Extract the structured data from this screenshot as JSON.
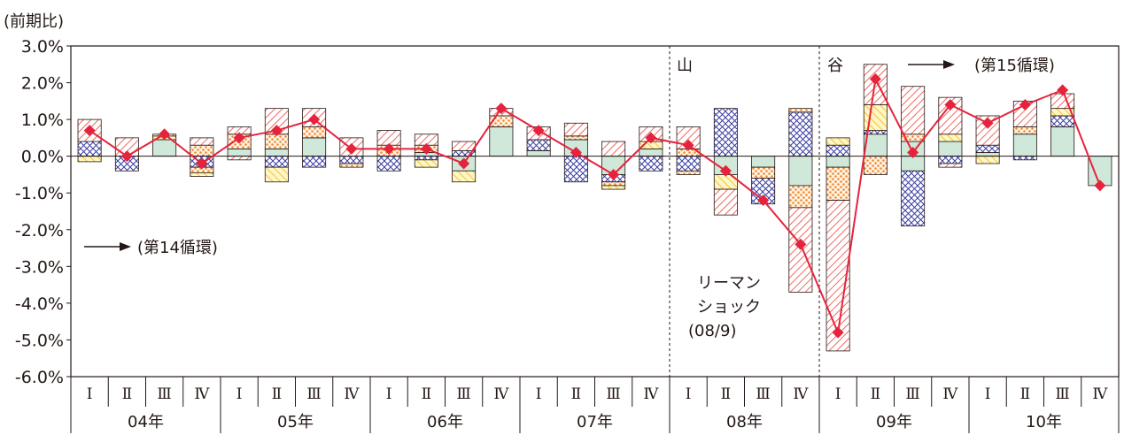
{
  "chart_data": {
    "type": "bar+line",
    "y_unit_label": "(前期比)",
    "y_ticks": [
      "3.0%",
      "2.0%",
      "1.0%",
      "0.0%",
      "-1.0%",
      "-2.0%",
      "-3.0%",
      "-4.0%",
      "-5.0%",
      "-6.0%"
    ],
    "ylim": [
      -6,
      3
    ],
    "quarter_labels": [
      "Ⅰ",
      "Ⅱ",
      "Ⅲ",
      "Ⅳ"
    ],
    "years": [
      "04年",
      "05年",
      "06年",
      "07年",
      "08年",
      "09年",
      "10年"
    ],
    "line_values": [
      0.7,
      0.0,
      0.6,
      -0.2,
      0.5,
      0.7,
      1.0,
      0.2,
      0.2,
      0.2,
      -0.2,
      1.3,
      0.7,
      0.1,
      -0.5,
      0.5,
      0.3,
      -0.4,
      -1.2,
      -2.4,
      -4.8,
      2.1,
      0.1,
      1.4,
      0.9,
      1.4,
      1.8,
      -0.8
    ],
    "stack_series_colors": {
      "solid": "#cfe8da",
      "crosshatch": "#3b3fa3",
      "hatch_yellow": "#f0c020",
      "dots_orange": "#f08a2c",
      "hatch_red": "#e8443a"
    },
    "bars": [
      {
        "pos": [
          [
            "cross",
            0.4
          ],
          [
            "red",
            0.6
          ]
        ],
        "neg": [
          [
            "yel",
            0.15
          ]
        ]
      },
      {
        "pos": [
          [
            "red",
            0.5
          ]
        ],
        "neg": [
          [
            "cross",
            0.4
          ]
        ]
      },
      {
        "pos": [
          [
            "solid",
            0.45
          ],
          [
            "yel",
            0.1
          ],
          [
            "red",
            0.05
          ]
        ],
        "neg": []
      },
      {
        "pos": [
          [
            "dots",
            0.3
          ],
          [
            "red",
            0.2
          ]
        ],
        "neg": [
          [
            "cross",
            0.3
          ],
          [
            "dots",
            0.15
          ],
          [
            "yel",
            0.1
          ]
        ]
      },
      {
        "pos": [
          [
            "solid",
            0.2
          ],
          [
            "dots",
            0.4
          ],
          [
            "red",
            0.2
          ]
        ],
        "neg": [
          [
            "red",
            0.1
          ]
        ]
      },
      {
        "pos": [
          [
            "solid",
            0.2
          ],
          [
            "dots",
            0.4
          ],
          [
            "red",
            0.7
          ]
        ],
        "neg": [
          [
            "cross",
            0.3
          ],
          [
            "yel",
            0.4
          ]
        ]
      },
      {
        "pos": [
          [
            "solid",
            0.5
          ],
          [
            "dots",
            0.3
          ],
          [
            "red",
            0.5
          ]
        ],
        "neg": [
          [
            "cross",
            0.3
          ]
        ]
      },
      {
        "pos": [
          [
            "red",
            0.5
          ]
        ],
        "neg": [
          [
            "cross",
            0.2
          ],
          [
            "dots",
            0.1
          ]
        ]
      },
      {
        "pos": [
          [
            "dots",
            0.3
          ],
          [
            "red",
            0.4
          ]
        ],
        "neg": [
          [
            "cross",
            0.4
          ]
        ]
      },
      {
        "pos": [
          [
            "solid",
            0.1
          ],
          [
            "dots",
            0.2
          ],
          [
            "red",
            0.3
          ]
        ],
        "neg": [
          [
            "cross",
            0.1
          ],
          [
            "yel",
            0.2
          ]
        ]
      },
      {
        "pos": [
          [
            "cross",
            0.15
          ],
          [
            "red",
            0.25
          ]
        ],
        "neg": [
          [
            "solid",
            0.4
          ],
          [
            "yel",
            0.3
          ]
        ]
      },
      {
        "pos": [
          [
            "solid",
            0.8
          ],
          [
            "dots",
            0.3
          ],
          [
            "red",
            0.2
          ]
        ],
        "neg": []
      },
      {
        "pos": [
          [
            "solid",
            0.15
          ],
          [
            "cross",
            0.3
          ],
          [
            "red",
            0.35
          ]
        ],
        "neg": []
      },
      {
        "pos": [
          [
            "solid",
            0.45
          ],
          [
            "dots",
            0.1
          ],
          [
            "red",
            0.35
          ]
        ],
        "neg": [
          [
            "cross",
            0.7
          ]
        ]
      },
      {
        "pos": [
          [
            "red",
            0.4
          ]
        ],
        "neg": [
          [
            "solid",
            0.5
          ],
          [
            "cross",
            0.2
          ],
          [
            "dots",
            0.1
          ],
          [
            "yel",
            0.1
          ]
        ]
      },
      {
        "pos": [
          [
            "solid",
            0.2
          ],
          [
            "yel",
            0.2
          ],
          [
            "red",
            0.4
          ]
        ],
        "neg": [
          [
            "cross",
            0.4
          ]
        ]
      },
      {
        "pos": [
          [
            "dots",
            0.2
          ],
          [
            "red",
            0.6
          ]
        ],
        "neg": [
          [
            "cross",
            0.4
          ],
          [
            "dots",
            0.1
          ]
        ]
      },
      {
        "pos": [
          [
            "cross",
            1.3
          ]
        ],
        "neg": [
          [
            "solid",
            0.5
          ],
          [
            "yel",
            0.4
          ],
          [
            "red",
            0.7
          ]
        ]
      },
      {
        "pos": [],
        "neg": [
          [
            "solid",
            0.3
          ],
          [
            "dots",
            0.3
          ],
          [
            "cross",
            0.7
          ]
        ]
      },
      {
        "pos": [
          [
            "cross",
            1.2
          ],
          [
            "dots",
            0.1
          ]
        ],
        "neg": [
          [
            "solid",
            0.8
          ],
          [
            "dots",
            0.6
          ],
          [
            "red",
            2.3
          ]
        ]
      },
      {
        "pos": [
          [
            "cross",
            0.3
          ],
          [
            "yel",
            0.2
          ]
        ],
        "neg": [
          [
            "solid",
            0.3
          ],
          [
            "dots",
            0.9
          ],
          [
            "red",
            4.1
          ]
        ]
      },
      {
        "pos": [
          [
            "solid",
            0.6
          ],
          [
            "cross",
            0.1
          ],
          [
            "yel",
            0.7
          ],
          [
            "red",
            1.1
          ]
        ],
        "neg": [
          [
            "dots",
            0.5
          ]
        ]
      },
      {
        "pos": [
          [
            "solid",
            0.4
          ],
          [
            "dots",
            0.2
          ],
          [
            "red",
            1.3
          ]
        ],
        "neg": [
          [
            "solid",
            0.4
          ],
          [
            "cross",
            1.5
          ]
        ]
      },
      {
        "pos": [
          [
            "solid",
            0.4
          ],
          [
            "yel",
            0.2
          ],
          [
            "red",
            1.0
          ]
        ],
        "neg": [
          [
            "cross",
            0.2
          ],
          [
            "red",
            0.1
          ]
        ]
      },
      {
        "pos": [
          [
            "solid",
            0.1
          ],
          [
            "cross",
            0.2
          ],
          [
            "red",
            0.8
          ]
        ],
        "neg": [
          [
            "yel",
            0.2
          ]
        ]
      },
      {
        "pos": [
          [
            "solid",
            0.6
          ],
          [
            "dots",
            0.2
          ],
          [
            "red",
            0.7
          ]
        ],
        "neg": [
          [
            "cross",
            0.1
          ]
        ]
      },
      {
        "pos": [
          [
            "solid",
            0.8
          ],
          [
            "cross",
            0.3
          ],
          [
            "yel",
            0.2
          ],
          [
            "red",
            0.4
          ]
        ],
        "neg": []
      },
      {
        "pos": [],
        "neg": [
          [
            "solid",
            0.8
          ]
        ]
      }
    ],
    "annotations": {
      "peak_label": "山",
      "trough_label": "谷",
      "arrow15": "(第15循環)",
      "arrow14": "(第14循環)",
      "lehman_line1": "リーマン",
      "lehman_line2": "ショック",
      "lehman_line3": "(08/9)"
    },
    "line_color": "#e6233c",
    "grid": false
  }
}
